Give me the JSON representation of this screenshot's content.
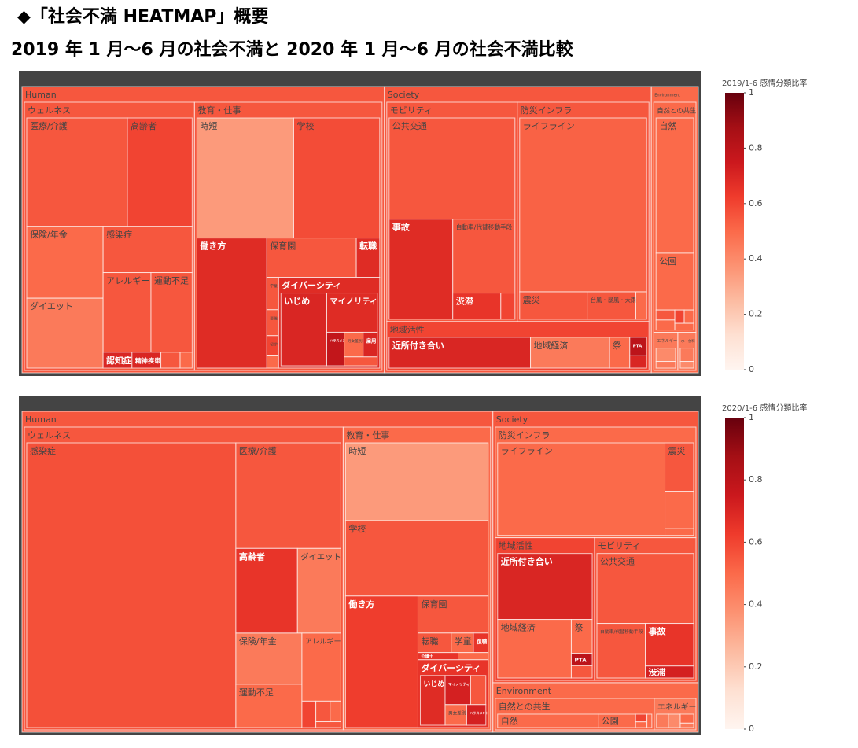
{
  "header": {
    "title": "◆「社会不満 HEATMAP」概要",
    "subtitle": "2019 年 1 月～6 月の社会不満と 2020 年 1 月～6 月の社会不満比較"
  },
  "chart_data": [
    {
      "type": "treemap",
      "colorbar_title": "2019/1-6 感情分類比率",
      "clim": [
        0,
        1
      ],
      "cticks": [
        0,
        0.2,
        0.4,
        0.6,
        0.8,
        1
      ],
      "colorscale": [
        "#fff5f0",
        "#fee0d2",
        "#fcbba1",
        "#fc9272",
        "#fb6a4a",
        "#ef3b2c",
        "#cb181d",
        "#a50f15",
        "#67000d"
      ],
      "nodes": [
        {
          "label": "Human",
          "ratio": 0.55,
          "children": [
            {
              "label": "ウェルネス",
              "ratio": 0.55,
              "children": [
                {
                  "label": "医療/介護",
                  "value": 143,
                  "ratio": 0.55
                },
                {
                  "label": "高齢者",
                  "value": 92,
                  "ratio": 0.6
                },
                {
                  "label": "保険/年金",
                  "value": 72,
                  "ratio": 0.5
                },
                {
                  "label": "ダイエット",
                  "value": 70,
                  "ratio": 0.45
                },
                {
                  "label": "感染症",
                  "value": 54,
                  "ratio": 0.55
                },
                {
                  "label": "アレルギー",
                  "value": 50,
                  "ratio": 0.55
                },
                {
                  "label": "運動不足",
                  "value": 43,
                  "ratio": 0.55
                },
                {
                  "label": "認知症",
                  "value": 6,
                  "ratio": 0.7
                },
                {
                  "label": "精神疾患",
                  "value": 6,
                  "ratio": 0.7
                },
                {
                  "label": null,
                  "value": 4,
                  "ratio": 0.55
                },
                {
                  "label": null,
                  "value": 2.5,
                  "ratio": 0.5
                }
              ]
            },
            {
              "label": "教育・仕事",
              "ratio": 0.55,
              "children": [
                {
                  "label": "時短",
                  "value": 152,
                  "ratio": 0.35
                },
                {
                  "label": "学校",
                  "value": 135,
                  "ratio": 0.58
                },
                {
                  "label": "働き方",
                  "value": 119,
                  "ratio": 0.68
                },
                {
                  "label": "保育園",
                  "value": 46,
                  "ratio": 0.55
                },
                {
                  "label": "転職",
                  "value": 12,
                  "ratio": 0.68
                },
                {
                  "label": "学童",
                  "value": 5,
                  "ratio": 0.55
                },
                {
                  "label": "要職",
                  "value": 4,
                  "ratio": 0.55
                },
                {
                  "label": "留学",
                  "value": 3,
                  "ratio": 0.6
                },
                {
                  "label": null,
                  "value": 2,
                  "ratio": 0.5
                },
                {
                  "label": "ダイバーシティ",
                  "ratio": 0.68,
                  "children": [
                    {
                      "label": "いじめ",
                      "value": 57,
                      "ratio": 0.7
                    },
                    {
                      "label": "マイノリティ",
                      "value": 34,
                      "ratio": 0.68
                    },
                    {
                      "label": "ハラスメント",
                      "value": 10,
                      "ratio": 0.78
                    },
                    {
                      "label": "男女差別",
                      "value": 8,
                      "ratio": 0.5
                    },
                    {
                      "label": "雇用",
                      "value": 6,
                      "ratio": 0.7
                    },
                    {
                      "label": null,
                      "value": 5,
                      "ratio": 0.55
                    }
                  ]
                }
              ]
            }
          ]
        },
        {
          "label": "Society",
          "ratio": 0.55,
          "children": [
            {
              "label": "モビリティ",
              "ratio": 0.55,
              "children": [
                {
                  "label": "公共交通",
                  "value": 172,
                  "ratio": 0.55
                },
                {
                  "label": "事故",
                  "value": 86,
                  "ratio": 0.68
                },
                {
                  "label": "自動車/代替移動手段",
                  "value": 62,
                  "ratio": 0.55
                },
                {
                  "label": "渋滞",
                  "value": 17,
                  "ratio": 0.65
                },
                {
                  "label": null,
                  "value": 5,
                  "ratio": 0.6
                }
              ]
            },
            {
              "label": "防災インフラ",
              "ratio": 0.55,
              "children": [
                {
                  "label": "ライフライン",
                  "value": 298,
                  "ratio": 0.52
                },
                {
                  "label": "震災",
                  "value": 25,
                  "ratio": 0.55
                },
                {
                  "label": "台風・暴風・大雨",
                  "value": 18,
                  "ratio": 0.55
                },
                {
                  "label": null,
                  "value": 4,
                  "ratio": 0.5
                }
              ]
            },
            {
              "label": "地域活性",
              "ratio": 0.6,
              "children": [
                {
                  "label": "近所付き合い",
                  "value": 84,
                  "ratio": 0.7
                },
                {
                  "label": "地域経済",
                  "value": 47,
                  "ratio": 0.45
                },
                {
                  "label": "祭",
                  "value": 12,
                  "ratio": 0.5
                },
                {
                  "label": "PTA",
                  "value": 6,
                  "ratio": 0.8
                },
                {
                  "label": null,
                  "value": 4,
                  "ratio": 0.7
                }
              ]
            }
          ]
        },
        {
          "label": "Environment",
          "ratio": 0.5,
          "children": [
            {
              "label": "自然との共生",
              "ratio": 0.5,
              "children": [
                {
                  "label": "自然",
                  "value": 81,
                  "ratio": 0.5
                },
                {
                  "label": "公園",
                  "value": 34,
                  "ratio": 0.5
                },
                {
                  "label": null,
                  "value": 3,
                  "ratio": 0.55
                },
                {
                  "label": null,
                  "value": 3,
                  "ratio": 0.5
                },
                {
                  "label": null,
                  "value": 2,
                  "ratio": 0.6
                },
                {
                  "label": null,
                  "value": 2,
                  "ratio": 0.5
                },
                {
                  "label": null,
                  "value": 2,
                  "ratio": 0.5
                }
              ]
            },
            {
              "label": "エネルギー",
              "ratio": 0.45,
              "children": [
                {
                  "label": null,
                  "value": 8,
                  "ratio": 0.4
                },
                {
                  "label": null,
                  "value": 4,
                  "ratio": 0.45
                }
              ]
            },
            {
              "label": "水・食料",
              "ratio": 0.45,
              "children": [
                {
                  "label": null,
                  "value": 6,
                  "ratio": 0.45
                },
                {
                  "label": null,
                  "value": 3,
                  "ratio": 0.4
                }
              ]
            }
          ]
        }
      ]
    },
    {
      "type": "treemap",
      "colorbar_title": "2020/1-6 感情分類比率",
      "clim": [
        0,
        1
      ],
      "cticks": [
        0,
        0.2,
        0.4,
        0.6,
        0.8,
        1
      ],
      "colorscale": [
        "#fff5f0",
        "#fee0d2",
        "#fcbba1",
        "#fc9272",
        "#fb6a4a",
        "#ef3b2c",
        "#cb181d",
        "#a50f15",
        "#67000d"
      ],
      "nodes": [
        {
          "label": "Human",
          "ratio": 0.55,
          "children": [
            {
              "label": "ウェルネス",
              "ratio": 0.55,
              "children": [
                {
                  "label": "感染症",
                  "value": 811,
                  "ratio": 0.57
                },
                {
                  "label": "医療/介護",
                  "value": 151,
                  "ratio": 0.55
                },
                {
                  "label": "高齢者",
                  "value": 71,
                  "ratio": 0.65
                },
                {
                  "label": "ダイエット",
                  "value": 50,
                  "ratio": 0.45
                },
                {
                  "label": "保険/年金",
                  "value": 46,
                  "ratio": 0.45
                },
                {
                  "label": "運動不足",
                  "value": 39,
                  "ratio": 0.5
                },
                {
                  "label": "アレルギー",
                  "value": 36,
                  "ratio": 0.5
                },
                {
                  "label": null,
                  "value": 5,
                  "ratio": 0.6
                },
                {
                  "label": null,
                  "value": 4,
                  "ratio": 0.55
                },
                {
                  "label": null,
                  "value": 3,
                  "ratio": 0.5
                },
                {
                  "label": null,
                  "value": 2,
                  "ratio": 0.55
                }
              ]
            },
            {
              "label": "教育・仕事",
              "ratio": 0.5,
              "children": [
                {
                  "label": "時短",
                  "value": 154,
                  "ratio": 0.35
                },
                {
                  "label": "学校",
                  "value": 149,
                  "ratio": 0.55
                },
                {
                  "label": "働き方",
                  "value": 132,
                  "ratio": 0.62
                },
                {
                  "label": "保育園",
                  "value": 36,
                  "ratio": 0.55
                },
                {
                  "label": "転職",
                  "value": 9,
                  "ratio": 0.55
                },
                {
                  "label": "学童",
                  "value": 6,
                  "ratio": 0.5
                },
                {
                  "label": "復職",
                  "value": 4,
                  "ratio": 0.65
                },
                {
                  "label": "介護士",
                  "value": 4,
                  "ratio": 0.65
                },
                {
                  "label": null,
                  "value": 3,
                  "ratio": 0.5
                },
                {
                  "label": "ダイバーシティ",
                  "ratio": 0.65,
                  "children": [
                    {
                      "label": "いじめ",
                      "value": 25,
                      "ratio": 0.68
                    },
                    {
                      "label": "マイノリティ",
                      "value": 15,
                      "ratio": 0.72
                    },
                    {
                      "label": null,
                      "value": 9,
                      "ratio": 0.55
                    },
                    {
                      "label": "男女差別",
                      "value": 9,
                      "ratio": 0.5
                    },
                    {
                      "label": "ハラスメント",
                      "value": 8,
                      "ratio": 0.72
                    }
                  ]
                }
              ]
            }
          ]
        },
        {
          "label": "Society",
          "ratio": 0.55,
          "children": [
            {
              "label": "防災インフラ",
              "ratio": 0.5,
              "children": [
                {
                  "label": "ライフライン",
                  "value": 245,
                  "ratio": 0.5
                },
                {
                  "label": "震災",
                  "value": 22,
                  "ratio": 0.55
                },
                {
                  "label": null,
                  "value": 17,
                  "ratio": 0.5
                },
                {
                  "label": null,
                  "value": 3,
                  "ratio": 0.5
                }
              ]
            },
            {
              "label": "地域活性",
              "ratio": 0.6,
              "children": [
                {
                  "label": "近所付き合い",
                  "value": 97,
                  "ratio": 0.7
                },
                {
                  "label": "地域経済",
                  "value": 67,
                  "ratio": 0.5
                },
                {
                  "label": "祭",
                  "value": 11,
                  "ratio": 0.5
                },
                {
                  "label": "PTA",
                  "value": 4,
                  "ratio": 0.8
                },
                {
                  "label": null,
                  "value": 4,
                  "ratio": 0.55
                }
              ]
            },
            {
              "label": "モビリティ",
              "ratio": 0.55,
              "children": [
                {
                  "label": "公共交通",
                  "value": 105,
                  "ratio": 0.55
                },
                {
                  "label": "自動車/代替移動手段",
                  "value": 41,
                  "ratio": 0.55
                },
                {
                  "label": "事故",
                  "value": 32,
                  "ratio": 0.65
                },
                {
                  "label": "渋滞",
                  "value": 9,
                  "ratio": 0.72
                }
              ]
            }
          ]
        },
        {
          "label": "Environment",
          "ratio": 0.5,
          "children": [
            {
              "label": "自然との共生",
              "ratio": 0.5,
              "children": [
                {
                  "label": "自然",
                  "value": 62,
                  "ratio": 0.5
                },
                {
                  "label": "公園",
                  "value": 23,
                  "ratio": 0.5
                },
                {
                  "label": null,
                  "value": 4,
                  "ratio": 0.6
                },
                {
                  "label": null,
                  "value": 3,
                  "ratio": 0.5
                },
                {
                  "label": null,
                  "value": 3,
                  "ratio": 0.5
                }
              ]
            },
            {
              "label": "エネルギー",
              "ratio": 0.45,
              "children": [
                {
                  "label": null,
                  "value": 8,
                  "ratio": 0.45
                },
                {
                  "label": null,
                  "value": 8,
                  "ratio": 0.4
                },
                {
                  "label": null,
                  "value": 6,
                  "ratio": 0.5
                },
                {
                  "label": null,
                  "value": 3,
                  "ratio": 0.45
                }
              ]
            }
          ]
        }
      ]
    }
  ]
}
